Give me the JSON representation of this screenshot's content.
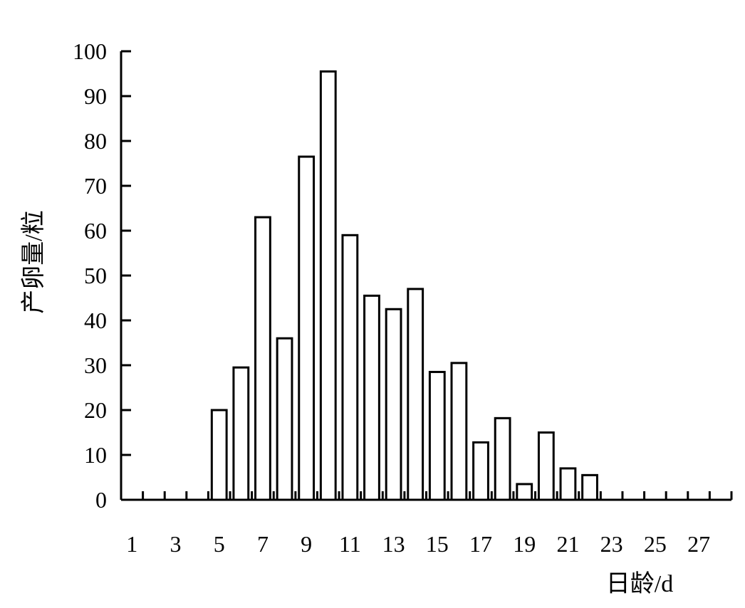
{
  "chart_data": {
    "type": "bar",
    "categories": [
      1,
      2,
      3,
      4,
      5,
      6,
      7,
      8,
      9,
      10,
      11,
      12,
      13,
      14,
      15,
      16,
      17,
      18,
      19,
      20,
      21,
      22,
      23,
      24,
      25,
      26,
      27,
      28
    ],
    "values": [
      0,
      0,
      0,
      0,
      20,
      29.5,
      63,
      36,
      76.5,
      95.5,
      59,
      45.5,
      42.5,
      47,
      28.5,
      30.5,
      12.8,
      18.2,
      3.5,
      15,
      7,
      5.5,
      0,
      0,
      0,
      0,
      0,
      0
    ],
    "xlabel": "日龄/d",
    "ylabel": "产卵量/粒",
    "ylim": [
      0,
      100
    ],
    "y_ticks": [
      "0",
      "10",
      "20",
      "30",
      "40",
      "50",
      "60",
      "70",
      "80",
      "90",
      "100"
    ],
    "x_tick_labels": [
      "1",
      "3",
      "5",
      "7",
      "9",
      "11",
      "13",
      "15",
      "17",
      "19",
      "21",
      "23",
      "25",
      "27"
    ],
    "x_tick_label_categories": [
      1,
      3,
      5,
      7,
      9,
      11,
      13,
      15,
      17,
      19,
      21,
      23,
      25,
      27
    ],
    "grid": false,
    "legend": "none",
    "bar_fill": "#ffffff",
    "bar_stroke": "#000000"
  }
}
